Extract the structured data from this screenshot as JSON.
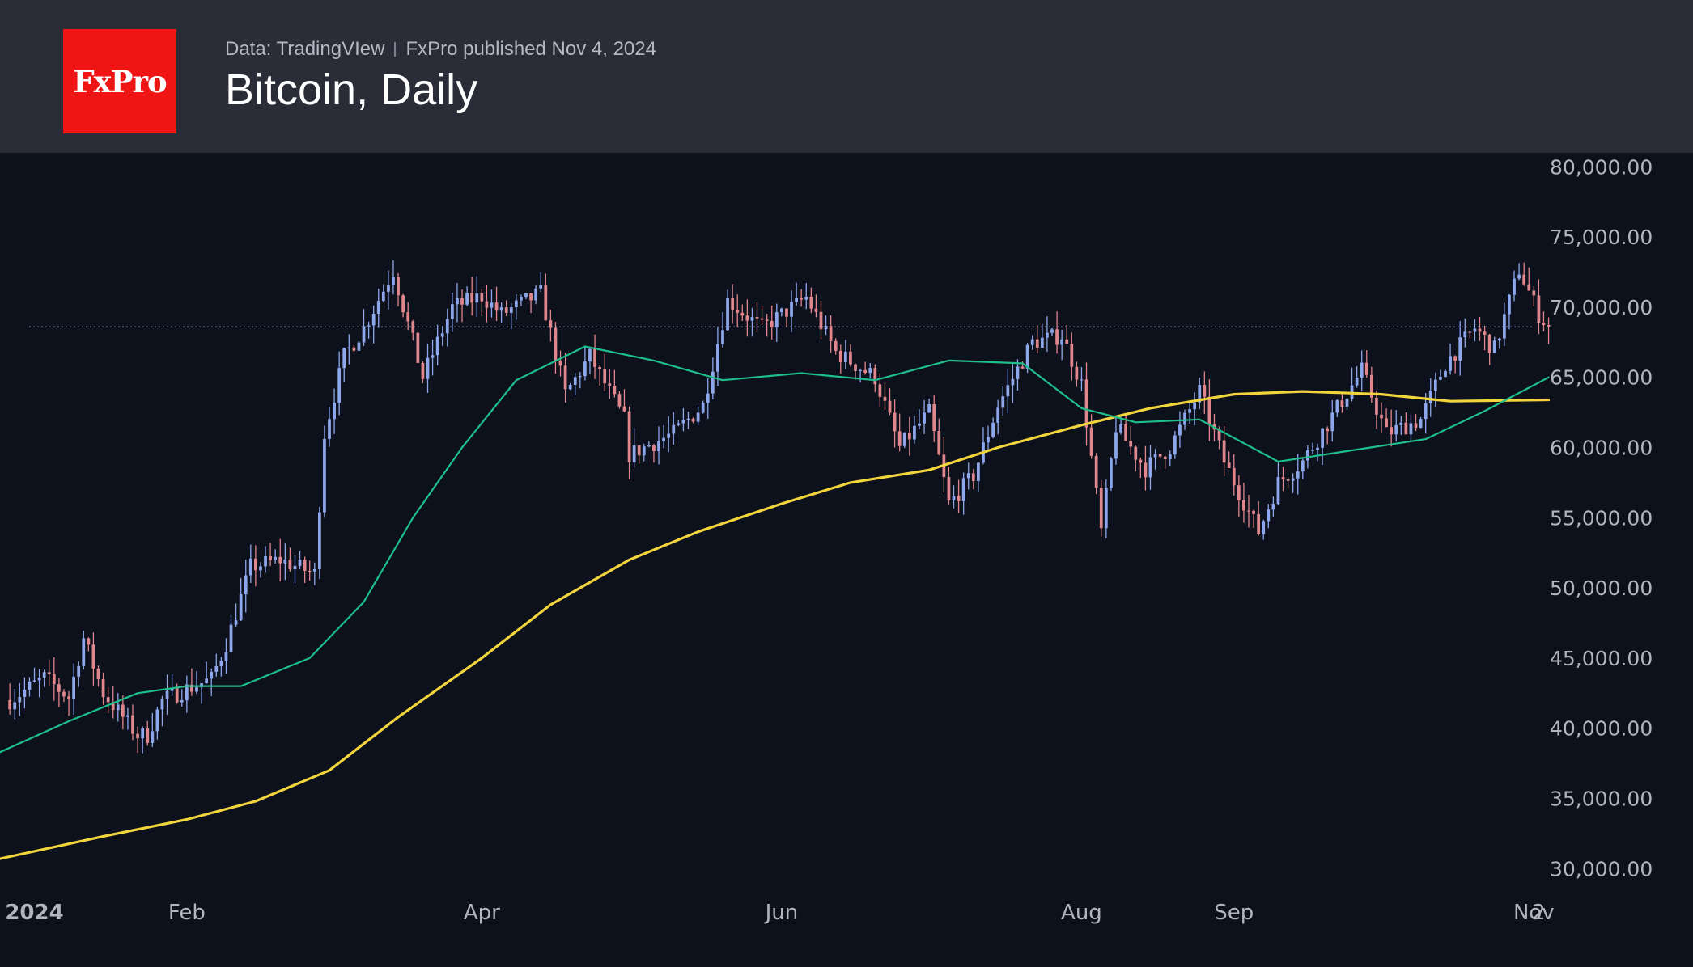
{
  "header": {
    "logo_text": "FxPro",
    "source": "Data: TradingVIew",
    "publisher": "FxPro published Nov 4, 2024",
    "title": "Bitcoin, Daily"
  },
  "chart_data": {
    "type": "candlestick",
    "title": "Bitcoin, Daily",
    "ylim": [
      28000,
      81000
    ],
    "y_ticks": [
      30000,
      35000,
      40000,
      45000,
      50000,
      55000,
      60000,
      65000,
      70000,
      75000,
      80000
    ],
    "y_tick_labels": [
      "30,000.00",
      "35,000.00",
      "40,000.00",
      "45,000.00",
      "50,000.00",
      "55,000.00",
      "60,000.00",
      "65,000.00",
      "70,000.00",
      "75,000.00",
      "80,000.00"
    ],
    "x_ticks": [
      {
        "label": "2024",
        "date": "2024-01-01",
        "bold": true
      },
      {
        "label": "Feb",
        "date": "2024-02-01"
      },
      {
        "label": "Apr",
        "date": "2024-04-01"
      },
      {
        "label": "Jun",
        "date": "2024-06-01"
      },
      {
        "label": "Aug",
        "date": "2024-08-01"
      },
      {
        "label": "Sep",
        "date": "2024-09-01"
      },
      {
        "label": "Nov",
        "date": "2024-11-01"
      },
      {
        "label": "2",
        "date": "2024-11-02"
      }
    ],
    "x_range": [
      "2023-12-25",
      "2024-11-10"
    ],
    "last_price": 68600,
    "colors": {
      "up": "#8ea7ec",
      "down": "#e0868d",
      "ma_short": "#1fbf8c",
      "ma_long": "#f2d43c",
      "axis_text": "#b2b5be",
      "price_line": "#6f7c99"
    },
    "anchors": [
      [
        "2023-12-27",
        42000
      ],
      [
        "2024-01-03",
        43600
      ],
      [
        "2024-01-08",
        42200
      ],
      [
        "2024-01-11",
        46400
      ],
      [
        "2024-01-15",
        42500
      ],
      [
        "2024-01-22",
        39500
      ],
      [
        "2024-01-24",
        39500
      ],
      [
        "2024-01-27",
        42000
      ],
      [
        "2024-02-01",
        42800
      ],
      [
        "2024-02-06",
        43500
      ],
      [
        "2024-02-09",
        46000
      ],
      [
        "2024-02-14",
        51500
      ],
      [
        "2024-02-20",
        52000
      ],
      [
        "2024-02-27",
        51000
      ],
      [
        "2024-02-29",
        61000
      ],
      [
        "2024-03-04",
        66500
      ],
      [
        "2024-03-08",
        68500
      ],
      [
        "2024-03-14",
        72600
      ],
      [
        "2024-03-20",
        65000
      ],
      [
        "2024-03-26",
        70000
      ],
      [
        "2024-04-01",
        70800
      ],
      [
        "2024-04-05",
        69500
      ],
      [
        "2024-04-13",
        71000
      ],
      [
        "2024-04-18",
        63800
      ],
      [
        "2024-04-23",
        66500
      ],
      [
        "2024-04-30",
        62000
      ],
      [
        "2024-05-01",
        59500
      ],
      [
        "2024-05-10",
        61000
      ],
      [
        "2024-05-16",
        63000
      ],
      [
        "2024-05-21",
        70500
      ],
      [
        "2024-05-28",
        68500
      ],
      [
        "2024-06-06",
        70700
      ],
      [
        "2024-06-12",
        66800
      ],
      [
        "2024-06-20",
        65000
      ],
      [
        "2024-06-25",
        60000
      ],
      [
        "2024-07-01",
        62500
      ],
      [
        "2024-07-05",
        56000
      ],
      [
        "2024-07-10",
        58000
      ],
      [
        "2024-07-15",
        63000
      ],
      [
        "2024-07-22",
        67500
      ],
      [
        "2024-07-28",
        68000
      ],
      [
        "2024-08-01",
        64500
      ],
      [
        "2024-08-05",
        54000
      ],
      [
        "2024-08-08",
        61500
      ],
      [
        "2024-08-14",
        58500
      ],
      [
        "2024-08-19",
        60000
      ],
      [
        "2024-08-25",
        64000
      ],
      [
        "2024-08-30",
        59000
      ],
      [
        "2024-09-06",
        54000
      ],
      [
        "2024-09-10",
        57500
      ],
      [
        "2024-09-15",
        59000
      ],
      [
        "2024-09-27",
        65500
      ],
      [
        "2024-10-02",
        61000
      ],
      [
        "2024-10-09",
        62000
      ],
      [
        "2024-10-14",
        66000
      ],
      [
        "2024-10-20",
        68500
      ],
      [
        "2024-10-24",
        67000
      ],
      [
        "2024-10-29",
        72700
      ],
      [
        "2024-11-02",
        69500
      ],
      [
        "2024-11-04",
        68600
      ]
    ],
    "ma_short": {
      "dates": [
        "2023-12-25",
        "2024-01-08",
        "2024-01-22",
        "2024-02-01",
        "2024-02-12",
        "2024-02-26",
        "2024-03-08",
        "2024-03-18",
        "2024-03-28",
        "2024-04-08",
        "2024-04-22",
        "2024-05-06",
        "2024-05-20",
        "2024-06-05",
        "2024-06-20",
        "2024-07-05",
        "2024-07-20",
        "2024-08-01",
        "2024-08-12",
        "2024-08-25",
        "2024-09-10",
        "2024-09-25",
        "2024-10-10",
        "2024-10-22",
        "2024-11-04"
      ],
      "values": [
        38300,
        40500,
        42500,
        43000,
        43000,
        45000,
        49000,
        55000,
        60000,
        64800,
        67200,
        66200,
        64800,
        65300,
        64800,
        66200,
        66000,
        62800,
        61800,
        62000,
        59000,
        59800,
        60600,
        62600,
        65000
      ]
    },
    "ma_long": {
      "dates": [
        "2023-12-25",
        "2024-01-15",
        "2024-02-01",
        "2024-02-15",
        "2024-03-01",
        "2024-03-15",
        "2024-04-01",
        "2024-04-15",
        "2024-05-01",
        "2024-05-15",
        "2024-06-01",
        "2024-06-15",
        "2024-07-01",
        "2024-07-15",
        "2024-08-01",
        "2024-08-15",
        "2024-09-01",
        "2024-09-15",
        "2024-10-01",
        "2024-10-15",
        "2024-11-04"
      ],
      "values": [
        30700,
        32300,
        33500,
        34800,
        37000,
        40800,
        45000,
        48800,
        52000,
        54000,
        56000,
        57500,
        58400,
        60000,
        61600,
        62800,
        63800,
        64000,
        63800,
        63300,
        63400
      ]
    }
  }
}
